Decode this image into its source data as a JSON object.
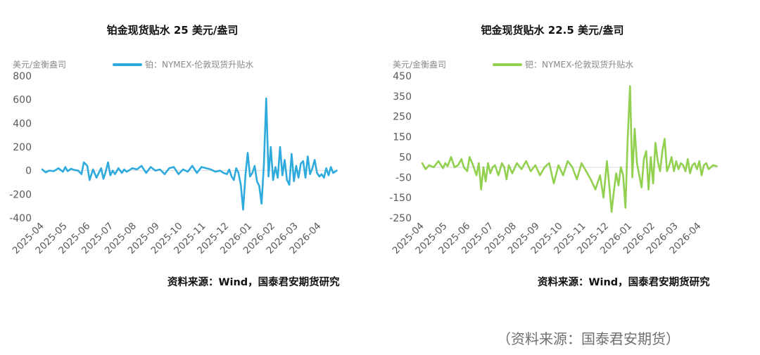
{
  "chart_data": [
    {
      "type": "line",
      "title": "铂金现货贴水 25 美元/盎司",
      "ylabel": "美元/金衡盎司",
      "legend": "铂：NYMEX-伦敦现货升贴水",
      "color": "#2eaadc",
      "ylim": [
        -400,
        800
      ],
      "yticks": [
        "800",
        "600",
        "400",
        "200",
        "0",
        "-200",
        "-400"
      ],
      "yvalues": [
        800,
        600,
        400,
        200,
        0,
        -200,
        -400
      ],
      "xticks": [
        "2025-04",
        "2025-05",
        "2025-06",
        "2025-07",
        "2025-08",
        "2025-09",
        "2025-10",
        "2025-11",
        "2025-12",
        "2026-01",
        "2026-02",
        "2026-03",
        "2026-04"
      ],
      "xlim": [
        0,
        12.8
      ],
      "series": [
        {
          "x": [
            0,
            0.15,
            0.3,
            0.5,
            0.7,
            0.9,
            1.0,
            1.1,
            1.25,
            1.4,
            1.55,
            1.7,
            1.8,
            1.95,
            2.05,
            2.2,
            2.35,
            2.45,
            2.55,
            2.65,
            2.75,
            2.85,
            2.95,
            3.05,
            3.15,
            3.3,
            3.45,
            3.55,
            3.65,
            3.75,
            3.9,
            4.1,
            4.3,
            4.5,
            4.7,
            4.9,
            5.1,
            5.3,
            5.5,
            5.7,
            5.9,
            6.1,
            6.3,
            6.5,
            6.7,
            6.9,
            7.1,
            7.3,
            7.5,
            7.7,
            7.85,
            8.0,
            8.1,
            8.2,
            8.3,
            8.4,
            8.5,
            8.6,
            8.7,
            8.8,
            8.9,
            9.0,
            9.1,
            9.2,
            9.3,
            9.4,
            9.5,
            9.6,
            9.7,
            9.8,
            9.9,
            10.0,
            10.1,
            10.2,
            10.3,
            10.4,
            10.5,
            10.6,
            10.7,
            10.8,
            10.9,
            11.0,
            11.1,
            11.2,
            11.3,
            11.4,
            11.5,
            11.6,
            11.7,
            11.8,
            11.9,
            12.0,
            12.1,
            12.2,
            12.3,
            12.4,
            12.5,
            12.6,
            12.75
          ],
          "y": [
            10,
            -15,
            0,
            -5,
            20,
            -10,
            30,
            -5,
            15,
            5,
            0,
            -30,
            70,
            40,
            -80,
            10,
            -60,
            -20,
            20,
            -70,
            -10,
            70,
            -40,
            0,
            -30,
            20,
            -20,
            10,
            -10,
            0,
            20,
            10,
            40,
            -20,
            30,
            0,
            10,
            -30,
            20,
            30,
            -30,
            10,
            -10,
            40,
            -20,
            30,
            20,
            10,
            -10,
            0,
            -20,
            -30,
            10,
            -50,
            -80,
            20,
            -20,
            -120,
            -330,
            -40,
            150,
            -50,
            -20,
            40,
            -90,
            -130,
            -280,
            50,
            610,
            -50,
            200,
            -80,
            30,
            -60,
            200,
            -40,
            90,
            -80,
            -120,
            140,
            -90,
            40,
            -60,
            60,
            80,
            -60,
            120,
            -30,
            20,
            90,
            -20,
            -50,
            -30,
            -60,
            20,
            -40,
            30,
            -20,
            0
          ]
        }
      ]
    },
    {
      "type": "line",
      "title": "钯金现货贴水 22.5 美元/盎司",
      "ylabel": "美元/金衡盎司",
      "legend": "钯：NYMEX-伦敦现货升贴水",
      "color": "#92d050",
      "ylim": [
        -250,
        450
      ],
      "yticks": [
        "450",
        "350",
        "250",
        "150",
        "50",
        "-50",
        "-150",
        "-250"
      ],
      "yvalues": [
        450,
        350,
        250,
        150,
        50,
        -50,
        -150,
        -250
      ],
      "xticks": [
        "2025-04",
        "2025-05",
        "2025-06",
        "2025-07",
        "2025-08",
        "2025-09",
        "2025-10",
        "2025-11",
        "2025-12",
        "2026-01",
        "2026-02",
        "2026-03",
        "2026-04"
      ],
      "xlim": [
        0,
        12.8
      ],
      "series": [
        {
          "x": [
            0,
            0.15,
            0.3,
            0.5,
            0.7,
            0.9,
            1.0,
            1.1,
            1.25,
            1.4,
            1.55,
            1.7,
            1.8,
            1.95,
            2.05,
            2.2,
            2.35,
            2.45,
            2.55,
            2.65,
            2.75,
            2.85,
            2.95,
            3.05,
            3.15,
            3.3,
            3.45,
            3.55,
            3.65,
            3.75,
            3.9,
            4.1,
            4.3,
            4.5,
            4.7,
            4.9,
            5.1,
            5.3,
            5.5,
            5.7,
            5.9,
            6.1,
            6.3,
            6.5,
            6.7,
            6.9,
            7.1,
            7.3,
            7.5,
            7.7,
            7.85,
            8.0,
            8.1,
            8.2,
            8.3,
            8.4,
            8.5,
            8.6,
            8.7,
            8.8,
            8.9,
            9.0,
            9.1,
            9.2,
            9.3,
            9.4,
            9.5,
            9.6,
            9.7,
            9.8,
            9.9,
            10.0,
            10.1,
            10.2,
            10.3,
            10.4,
            10.5,
            10.6,
            10.7,
            10.8,
            10.9,
            11.0,
            11.1,
            11.2,
            11.3,
            11.4,
            11.5,
            11.6,
            11.7,
            11.8,
            11.9,
            12.0,
            12.1,
            12.2,
            12.3,
            12.4,
            12.5,
            12.6,
            12.75
          ],
          "y": [
            20,
            -10,
            10,
            0,
            30,
            -5,
            20,
            5,
            50,
            0,
            10,
            40,
            0,
            -20,
            50,
            10,
            -40,
            20,
            -110,
            0,
            -70,
            20,
            -30,
            0,
            10,
            -40,
            20,
            0,
            -60,
            10,
            -30,
            20,
            -10,
            30,
            -20,
            10,
            -40,
            0,
            20,
            -80,
            10,
            -40,
            30,
            0,
            -60,
            20,
            -20,
            -60,
            -110,
            -40,
            -150,
            30,
            -90,
            -220,
            -120,
            -30,
            -90,
            0,
            -40,
            -200,
            140,
            400,
            -50,
            190,
            20,
            -40,
            -100,
            40,
            80,
            -110,
            50,
            -80,
            120,
            30,
            -20,
            80,
            140,
            -20,
            10,
            50,
            -20,
            30,
            -10,
            20,
            10,
            -20,
            40,
            -30,
            10,
            20,
            -10,
            30,
            -40,
            10,
            20,
            -10,
            0,
            10,
            5
          ]
        }
      ]
    }
  ],
  "panels": [
    {
      "source": "资料来源：Wind，国泰君安期货研究"
    },
    {
      "source": "资料来源：Wind，国泰君安期货研究"
    }
  ],
  "bottom_note": "（资料来源：国泰君安期货）"
}
